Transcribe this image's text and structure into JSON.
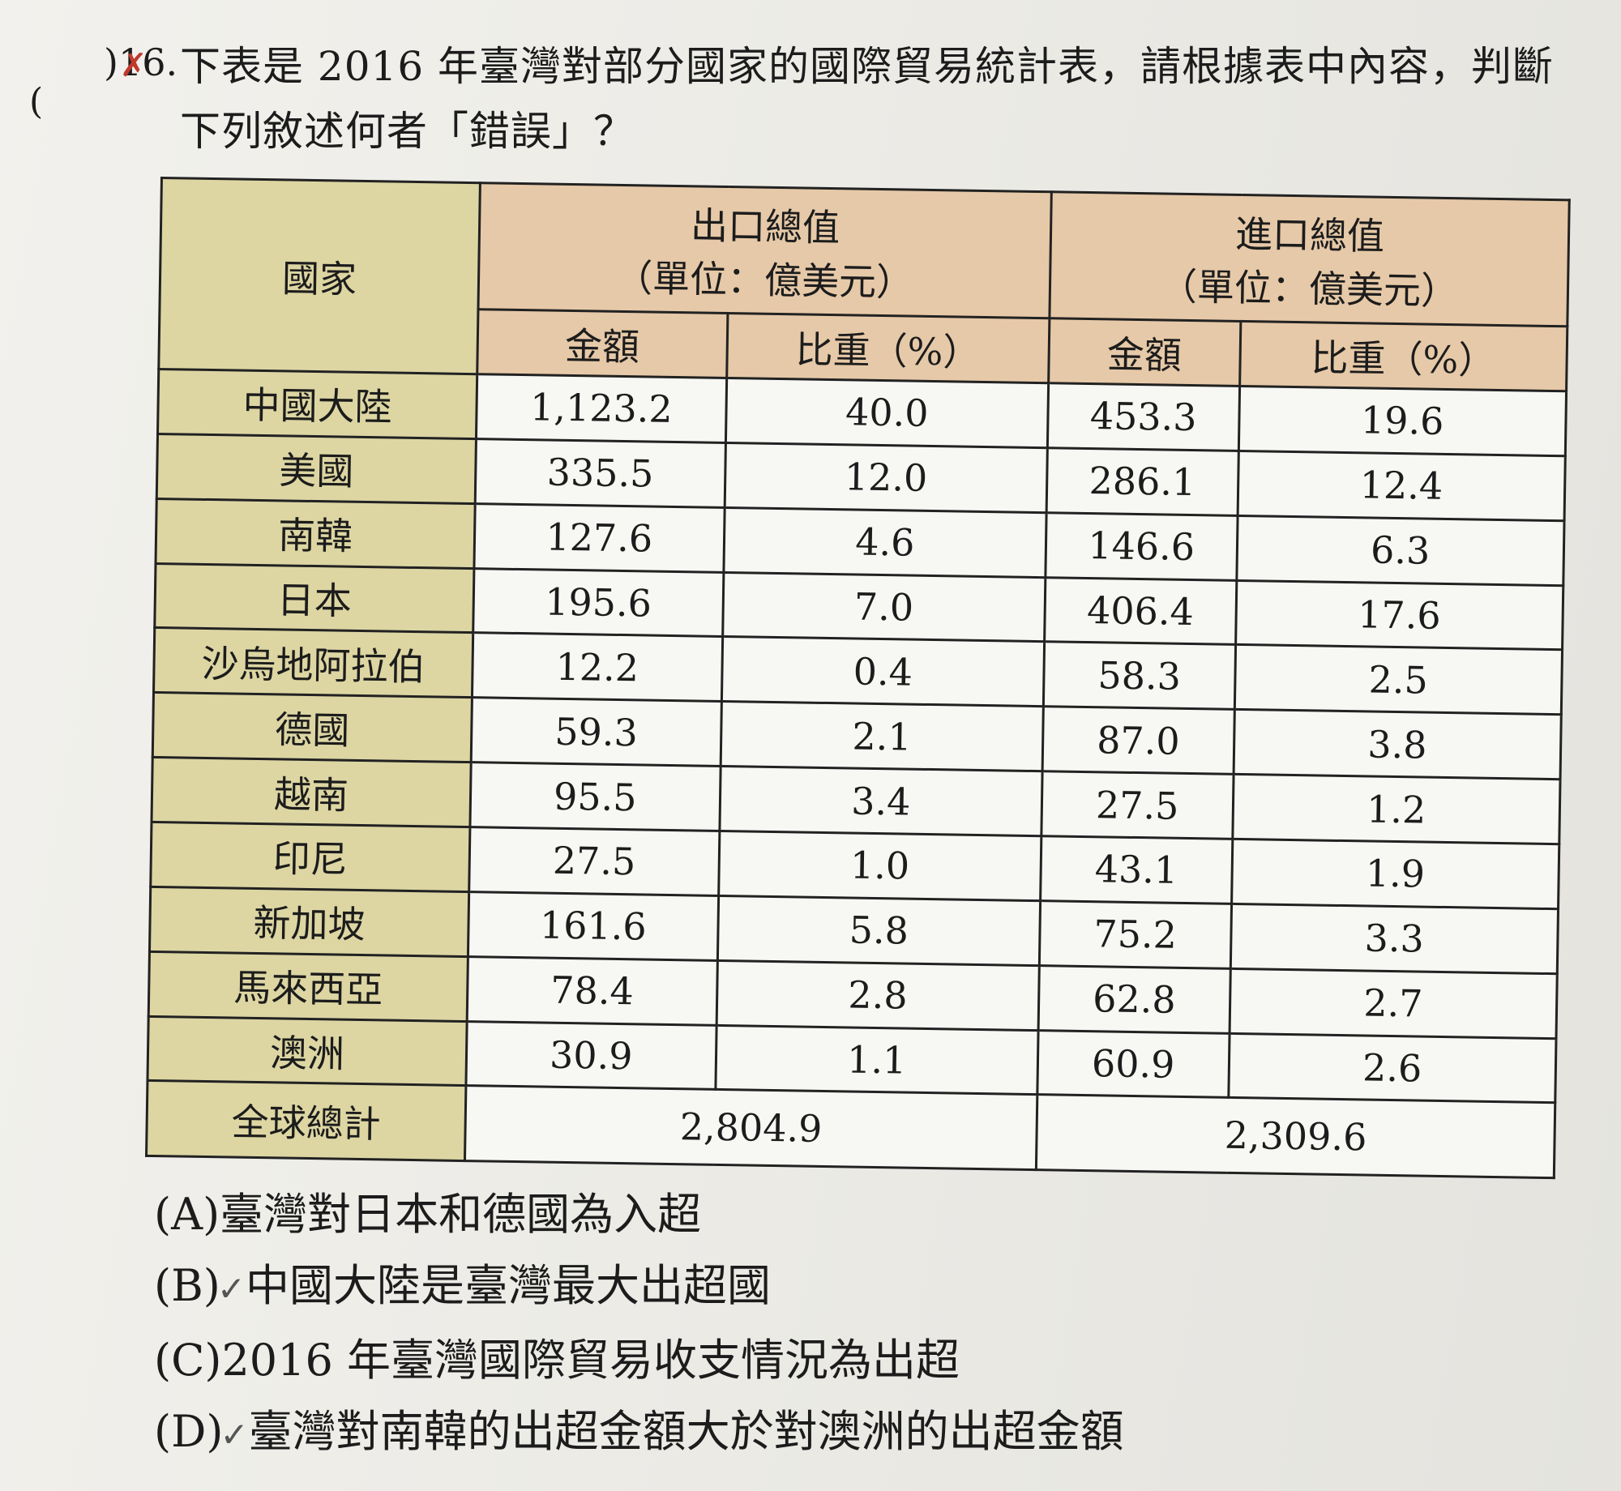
{
  "question": {
    "paren": "(",
    "number": ")16.",
    "mark": "✗",
    "line1": "下表是 2016 年臺灣對部分國家的國際貿易統計表，請根據表中內容，判斷",
    "line2": "下列敘述何者「錯誤」？"
  },
  "table": {
    "country_header": "國家",
    "export_header": "出口總值",
    "export_unit": "（單位：億美元）",
    "import_header": "進口總值",
    "import_unit": "（單位：億美元）",
    "amount_label": "金額",
    "share_label": "比重（%）",
    "rows": [
      {
        "country": "中國大陸",
        "export_amount": "1,123.2",
        "export_share": "40.0",
        "import_amount": "453.3",
        "import_share": "19.6"
      },
      {
        "country": "美國",
        "export_amount": "335.5",
        "export_share": "12.0",
        "import_amount": "286.1",
        "import_share": "12.4"
      },
      {
        "country": "南韓",
        "export_amount": "127.6",
        "export_share": "4.6",
        "import_amount": "146.6",
        "import_share": "6.3"
      },
      {
        "country": "日本",
        "export_amount": "195.6",
        "export_share": "7.0",
        "import_amount": "406.4",
        "import_share": "17.6"
      },
      {
        "country": "沙烏地阿拉伯",
        "export_amount": "12.2",
        "export_share": "0.4",
        "import_amount": "58.3",
        "import_share": "2.5"
      },
      {
        "country": "德國",
        "export_amount": "59.3",
        "export_share": "2.1",
        "import_amount": "87.0",
        "import_share": "3.8"
      },
      {
        "country": "越南",
        "export_amount": "95.5",
        "export_share": "3.4",
        "import_amount": "27.5",
        "import_share": "1.2"
      },
      {
        "country": "印尼",
        "export_amount": "27.5",
        "export_share": "1.0",
        "import_amount": "43.1",
        "import_share": "1.9"
      },
      {
        "country": "新加坡",
        "export_amount": "161.6",
        "export_share": "5.8",
        "import_amount": "75.2",
        "import_share": "3.3"
      },
      {
        "country": "馬來西亞",
        "export_amount": "78.4",
        "export_share": "2.8",
        "import_amount": "62.8",
        "import_share": "2.7"
      },
      {
        "country": "澳洲",
        "export_amount": "30.9",
        "export_share": "1.1",
        "import_amount": "60.9",
        "import_share": "2.6"
      }
    ],
    "total_label": "全球總計",
    "export_total": "2,804.9",
    "import_total": "2,309.6"
  },
  "options": [
    {
      "letter": "(A)",
      "text": "臺灣對日本和德國為入超",
      "checked": ""
    },
    {
      "letter": "(B)",
      "text": "中國大陸是臺灣最大出超國",
      "checked": "✓"
    },
    {
      "letter": "(C)",
      "text": "2016 年臺灣國際貿易收支情況為出超",
      "checked": ""
    },
    {
      "letter": "(D)",
      "text": "臺灣對南韓的出超金額大於對澳洲的出超金額",
      "checked": "✓"
    }
  ]
}
